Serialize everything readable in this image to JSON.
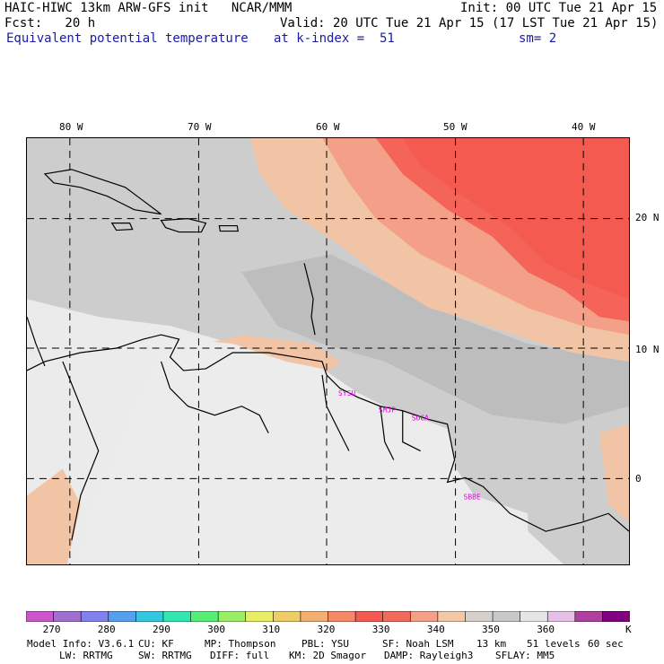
{
  "header": {
    "title": "HAIC-HIWC 13km ARW-GFS init   NCAR/MMM",
    "init": "Init: 00 UTC Tue 21 Apr 15",
    "fcst": "Fcst:   20 h",
    "valid": "Valid: 20 UTC Tue 21 Apr 15 (17 LST Tue 21 Apr 15)",
    "field": "Equivalent potential temperature",
    "level": "at k-index =  51",
    "smooth": "sm= 2"
  },
  "colors": {
    "header_blue": "#1a1aa8",
    "station": "#e000e0"
  },
  "map": {
    "lon_labels": [
      "80 W",
      "70 W",
      "60 W",
      "50 W",
      "40 W"
    ],
    "lat_labels": [
      "20 N",
      "10 N",
      "0"
    ],
    "stations": [
      "SYSU",
      "SMJP",
      "SOCA",
      "SBBE"
    ]
  },
  "colorbar": {
    "colors": [
      "#cc55cc",
      "#a070d0",
      "#8080ee",
      "#55a0ee",
      "#33c8e0",
      "#33e8b0",
      "#55ee77",
      "#99ee66",
      "#e6ee66",
      "#eecc66",
      "#f4b070",
      "#f48868",
      "#f45a50",
      "#f46a5a",
      "#f4a088",
      "#f2c8a8",
      "#d8d0c8",
      "#c8c8c8",
      "#e6e6e6",
      "#e6c0e6",
      "#b040a0",
      "#800080"
    ],
    "ticks": [
      "270",
      "280",
      "290",
      "300",
      "310",
      "320",
      "330",
      "340",
      "350",
      "360"
    ],
    "unit": "K"
  },
  "footer": {
    "model": "Model Info: V3.6.1",
    "cu": "CU: KF",
    "mp": "MP: Thompson",
    "pbl": "PBL: YSU",
    "sf": "SF: Noah LSM",
    "res": "13 km",
    "levels": "51 levels",
    "dt": "60 sec",
    "lw": "LW: RRTMG",
    "sw": "SW: RRTMG",
    "diff": "DIFF: full",
    "km": "KM: 2D Smagor",
    "damp": "DAMP: Rayleigh3",
    "sflay": "SFLAY: MM5"
  }
}
